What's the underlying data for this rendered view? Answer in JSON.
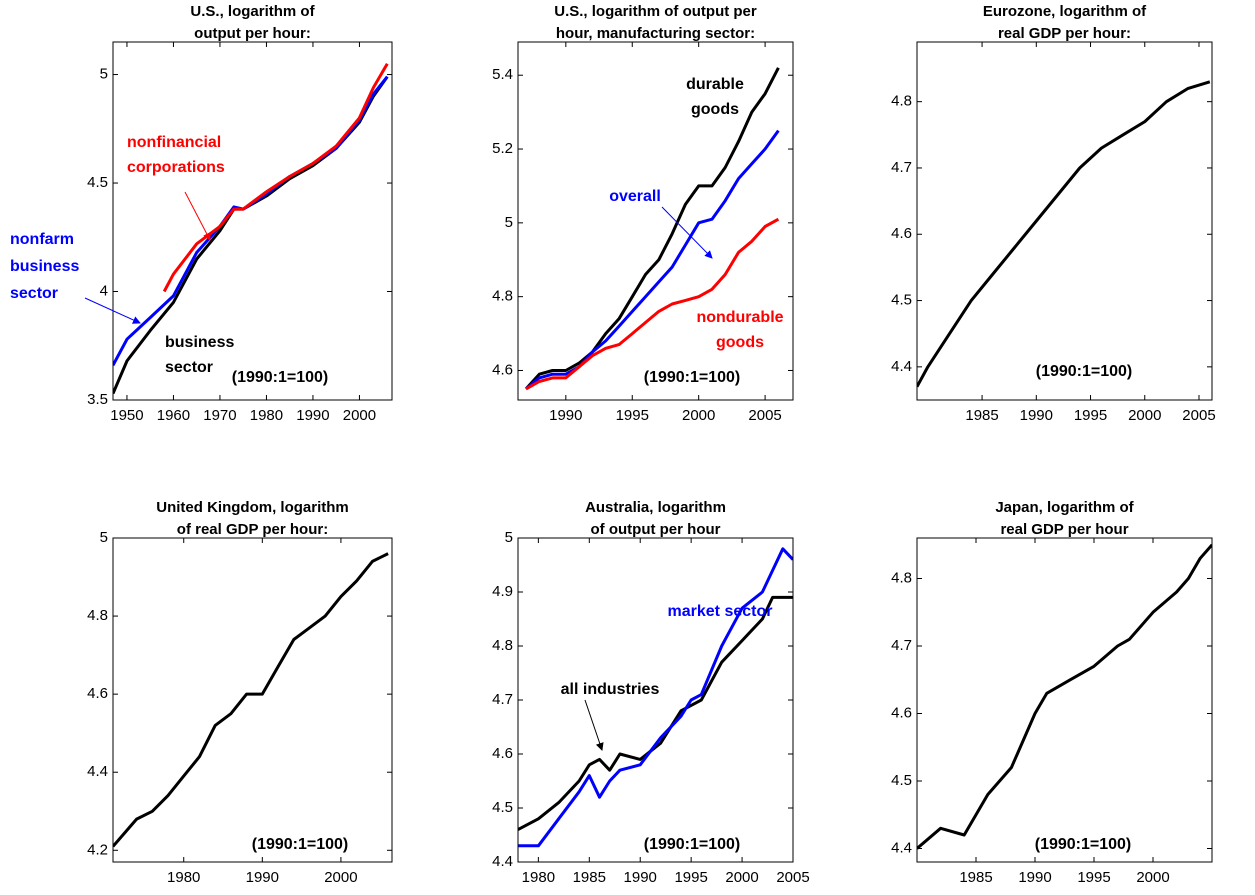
{
  "chart_data": [
    {
      "type": "line",
      "title": [
        "U.S., logarithm of",
        "output per hour:"
      ],
      "xlim": [
        1947,
        2007
      ],
      "xticks": [
        1950,
        1960,
        1970,
        1980,
        1990,
        2000
      ],
      "ylim": [
        3.5,
        5.15
      ],
      "yticks": [
        3.5,
        4,
        4.5,
        5
      ],
      "series": [
        {
          "name": "business sector",
          "color": "#000000",
          "x": [
            1947,
            1950,
            1955,
            1960,
            1965,
            1970,
            1973,
            1975,
            1980,
            1985,
            1990,
            1995,
            2000,
            2003,
            2006
          ],
          "values": [
            3.53,
            3.68,
            3.82,
            3.95,
            4.15,
            4.28,
            4.38,
            4.38,
            4.44,
            4.52,
            4.58,
            4.66,
            4.78,
            4.9,
            4.99
          ]
        },
        {
          "name": "nonfarm business sector",
          "color": "#0000ff",
          "x": [
            1947,
            1950,
            1955,
            1960,
            1965,
            1970,
            1973,
            1975,
            1980,
            1985,
            1990,
            1995,
            2000,
            2003,
            2006
          ],
          "values": [
            3.66,
            3.78,
            3.88,
            3.98,
            4.18,
            4.3,
            4.39,
            4.38,
            4.45,
            4.53,
            4.59,
            4.66,
            4.79,
            4.91,
            4.99
          ]
        },
        {
          "name": "nonfinancial corporations",
          "color": "#ff0000",
          "x": [
            1958,
            1960,
            1965,
            1970,
            1973,
            1975,
            1980,
            1985,
            1990,
            1995,
            2000,
            2003,
            2006
          ],
          "values": [
            4.0,
            4.08,
            4.22,
            4.3,
            4.38,
            4.38,
            4.46,
            4.53,
            4.59,
            4.67,
            4.8,
            4.94,
            5.05
          ]
        }
      ],
      "annotations": [
        {
          "text": [
            "nonfinancial",
            "corporations"
          ],
          "color": "#ff0000"
        },
        {
          "text": [
            "nonfarm",
            "business",
            "sector"
          ],
          "color": "#0000ff"
        },
        {
          "text": [
            "business",
            "sector"
          ],
          "color": "#000000"
        },
        {
          "text": [
            "(1990:1=100)"
          ],
          "color": "#000000"
        }
      ]
    },
    {
      "type": "line",
      "title": [
        "U.S., logarithm of output per",
        "hour, manufacturing sector:"
      ],
      "xlim": [
        1986.4,
        2007.1
      ],
      "xticks": [
        1990,
        1995,
        2000,
        2005
      ],
      "ylim": [
        4.52,
        5.49
      ],
      "yticks": [
        4.6,
        4.8,
        5,
        5.2,
        5.4
      ],
      "series": [
        {
          "name": "durable goods",
          "color": "#000000",
          "x": [
            1987,
            1988,
            1989,
            1990,
            1991,
            1992,
            1993,
            1994,
            1995,
            1996,
            1997,
            1998,
            1999,
            2000,
            2001,
            2002,
            2003,
            2004,
            2005,
            2006
          ],
          "values": [
            4.55,
            4.59,
            4.6,
            4.6,
            4.62,
            4.65,
            4.7,
            4.74,
            4.8,
            4.86,
            4.9,
            4.97,
            5.05,
            5.1,
            5.1,
            5.15,
            5.22,
            5.3,
            5.35,
            5.42
          ]
        },
        {
          "name": "overall",
          "color": "#0000ff",
          "x": [
            1987,
            1988,
            1989,
            1990,
            1991,
            1992,
            1993,
            1994,
            1995,
            1996,
            1997,
            1998,
            1999,
            2000,
            2001,
            2002,
            2003,
            2004,
            2005,
            2006
          ],
          "values": [
            4.55,
            4.58,
            4.59,
            4.59,
            4.61,
            4.65,
            4.68,
            4.72,
            4.76,
            4.8,
            4.84,
            4.88,
            4.94,
            5.0,
            5.01,
            5.06,
            5.12,
            5.16,
            5.2,
            5.25
          ]
        },
        {
          "name": "nondurable goods",
          "color": "#ff0000",
          "x": [
            1987,
            1988,
            1989,
            1990,
            1991,
            1992,
            1993,
            1994,
            1995,
            1996,
            1997,
            1998,
            1999,
            2000,
            2001,
            2002,
            2003,
            2004,
            2005,
            2006
          ],
          "values": [
            4.55,
            4.57,
            4.58,
            4.58,
            4.61,
            4.64,
            4.66,
            4.67,
            4.7,
            4.73,
            4.76,
            4.78,
            4.79,
            4.8,
            4.82,
            4.86,
            4.92,
            4.95,
            4.99,
            5.01
          ]
        }
      ],
      "annotations": [
        {
          "text": [
            "durable",
            "goods"
          ],
          "color": "#000000"
        },
        {
          "text": [
            "overall"
          ],
          "color": "#0000ff"
        },
        {
          "text": [
            "nondurable",
            "goods"
          ],
          "color": "#ff0000"
        },
        {
          "text": [
            "(1990:1=100)"
          ],
          "color": "#000000"
        }
      ]
    },
    {
      "type": "line",
      "title": [
        "Eurozone, logarithm of",
        "real GDP per hour:"
      ],
      "xlim": [
        1979,
        2006.2
      ],
      "xticks": [
        1985,
        1990,
        1995,
        2000,
        2005
      ],
      "ylim": [
        4.35,
        4.89
      ],
      "yticks": [
        4.4,
        4.5,
        4.6,
        4.7,
        4.8
      ],
      "series": [
        {
          "name": "Eurozone",
          "color": "#000000",
          "x": [
            1979,
            1980,
            1982,
            1984,
            1986,
            1988,
            1990,
            1992,
            1994,
            1996,
            1998,
            2000,
            2002,
            2004,
            2006
          ],
          "values": [
            4.37,
            4.4,
            4.45,
            4.5,
            4.54,
            4.58,
            4.62,
            4.66,
            4.7,
            4.73,
            4.75,
            4.77,
            4.8,
            4.82,
            4.83
          ]
        }
      ],
      "annotations": [
        {
          "text": [
            "(1990:1=100)"
          ],
          "color": "#000000"
        }
      ]
    },
    {
      "type": "line",
      "title": [
        "United Kingdom, logarithm",
        "of real GDP per hour:"
      ],
      "xlim": [
        1971,
        2006.5
      ],
      "xticks": [
        1980,
        1990,
        2000
      ],
      "ylim": [
        4.17,
        5.0
      ],
      "yticks": [
        4.2,
        4.4,
        4.6,
        4.8,
        5
      ],
      "series": [
        {
          "name": "United Kingdom",
          "color": "#000000",
          "x": [
            1971,
            1974,
            1976,
            1978,
            1980,
            1982,
            1984,
            1986,
            1988,
            1990,
            1992,
            1994,
            1996,
            1998,
            2000,
            2002,
            2004,
            2006
          ],
          "values": [
            4.21,
            4.28,
            4.3,
            4.34,
            4.39,
            4.44,
            4.52,
            4.55,
            4.6,
            4.6,
            4.67,
            4.74,
            4.77,
            4.8,
            4.85,
            4.89,
            4.94,
            4.96
          ]
        }
      ],
      "annotations": [
        {
          "text": [
            "(1990:1=100)"
          ],
          "color": "#000000"
        }
      ]
    },
    {
      "type": "line",
      "title": [
        "Australia, logarithm",
        "of output per hour"
      ],
      "xlim": [
        1978,
        2005
      ],
      "xticks": [
        1980,
        1985,
        1990,
        1995,
        2000,
        2005
      ],
      "ylim": [
        4.4,
        5.0
      ],
      "yticks": [
        4.4,
        4.5,
        4.6,
        4.7,
        4.8,
        4.9,
        5
      ],
      "series": [
        {
          "name": "all industries",
          "color": "#000000",
          "x": [
            1978,
            1980,
            1982,
            1984,
            1985,
            1986,
            1987,
            1988,
            1990,
            1992,
            1994,
            1995,
            1996,
            1998,
            2000,
            2002,
            2003,
            2005
          ],
          "values": [
            4.46,
            4.48,
            4.51,
            4.55,
            4.58,
            4.59,
            4.57,
            4.6,
            4.59,
            4.62,
            4.68,
            4.69,
            4.7,
            4.77,
            4.81,
            4.85,
            4.89,
            4.89
          ]
        },
        {
          "name": "market sector",
          "color": "#0000ff",
          "x": [
            1978,
            1980,
            1982,
            1984,
            1985,
            1986,
            1987,
            1988,
            1990,
            1992,
            1994,
            1995,
            1996,
            1998,
            2000,
            2002,
            2003,
            2004,
            2005
          ],
          "values": [
            4.43,
            4.43,
            4.48,
            4.53,
            4.56,
            4.52,
            4.55,
            4.57,
            4.58,
            4.63,
            4.67,
            4.7,
            4.71,
            4.8,
            4.87,
            4.9,
            4.94,
            4.98,
            4.96
          ]
        }
      ],
      "annotations": [
        {
          "text": [
            "market sector"
          ],
          "color": "#0000ff"
        },
        {
          "text": [
            "all industries"
          ],
          "color": "#000000"
        },
        {
          "text": [
            "(1990:1=100)"
          ],
          "color": "#000000"
        }
      ]
    },
    {
      "type": "line",
      "title": [
        "Japan, logarithm of",
        "real GDP per hour"
      ],
      "xlim": [
        1980,
        2005
      ],
      "xticks": [
        1985,
        1990,
        1995,
        2000
      ],
      "ylim": [
        4.38,
        4.86
      ],
      "yticks": [
        4.4,
        4.5,
        4.6,
        4.7,
        4.8
      ],
      "series": [
        {
          "name": "Japan",
          "color": "#000000",
          "x": [
            1980,
            1982,
            1984,
            1985,
            1986,
            1988,
            1990,
            1991,
            1993,
            1995,
            1997,
            1998,
            2000,
            2002,
            2003,
            2004,
            2005
          ],
          "values": [
            4.4,
            4.43,
            4.42,
            4.45,
            4.48,
            4.52,
            4.6,
            4.63,
            4.65,
            4.67,
            4.7,
            4.71,
            4.75,
            4.78,
            4.8,
            4.83,
            4.85
          ]
        }
      ],
      "annotations": [
        {
          "text": [
            "(1990:1=100)"
          ],
          "color": "#000000"
        }
      ]
    }
  ]
}
